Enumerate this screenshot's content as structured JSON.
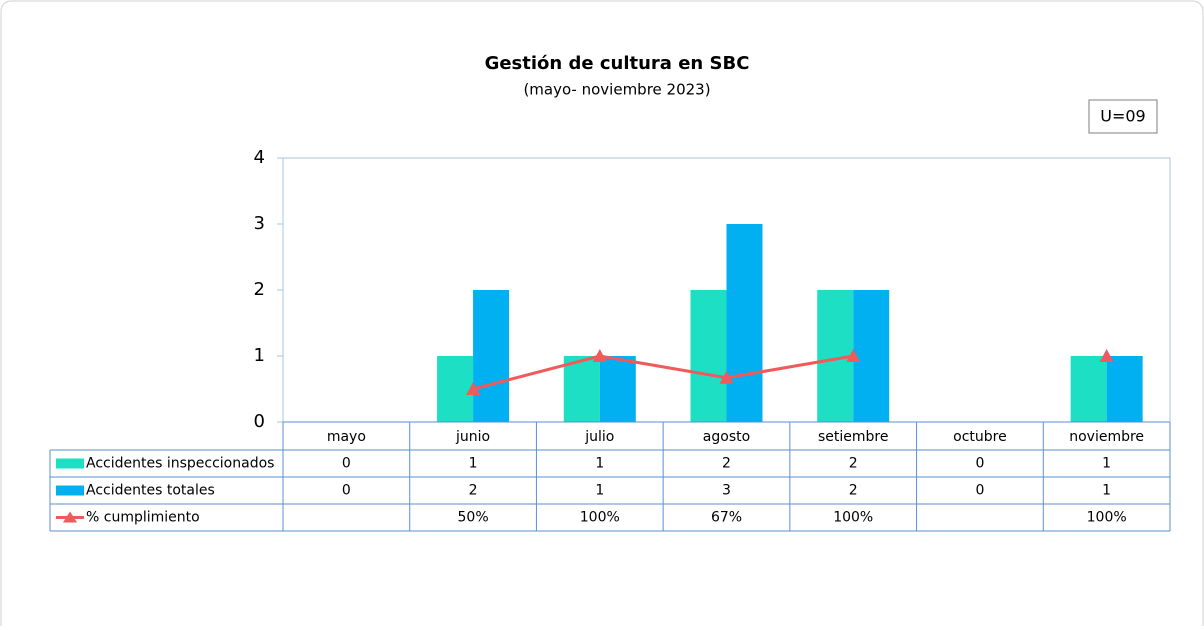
{
  "chart_data": {
    "type": "bar",
    "title": "Gestión de cultura en SBC",
    "subtitle": "(mayo- noviembre 2023)",
    "annotation": "U=09",
    "categories": [
      "mayo",
      "junio",
      "julio",
      "agosto",
      "setiembre",
      "octubre",
      "noviembre"
    ],
    "series": [
      {
        "name": "Accidentes inspeccionados",
        "color": "#1ddfc3",
        "values": [
          0,
          1,
          1,
          2,
          2,
          0,
          1
        ]
      },
      {
        "name": "Accidentes totales",
        "color": "#00b0f0",
        "values": [
          0,
          2,
          1,
          3,
          2,
          0,
          1
        ]
      },
      {
        "name": "% cumplimiento",
        "type": "line",
        "color": "#f05a5a",
        "values": [
          null,
          0.5,
          1,
          0.67,
          1,
          null,
          1
        ],
        "value_labels": [
          null,
          "50%",
          "100%",
          "67%",
          "100%",
          null,
          "100%"
        ]
      }
    ],
    "ylim": [
      0,
      4
    ],
    "yticks": [
      0,
      1,
      2,
      3,
      4
    ],
    "grid": false,
    "data_table": true
  }
}
